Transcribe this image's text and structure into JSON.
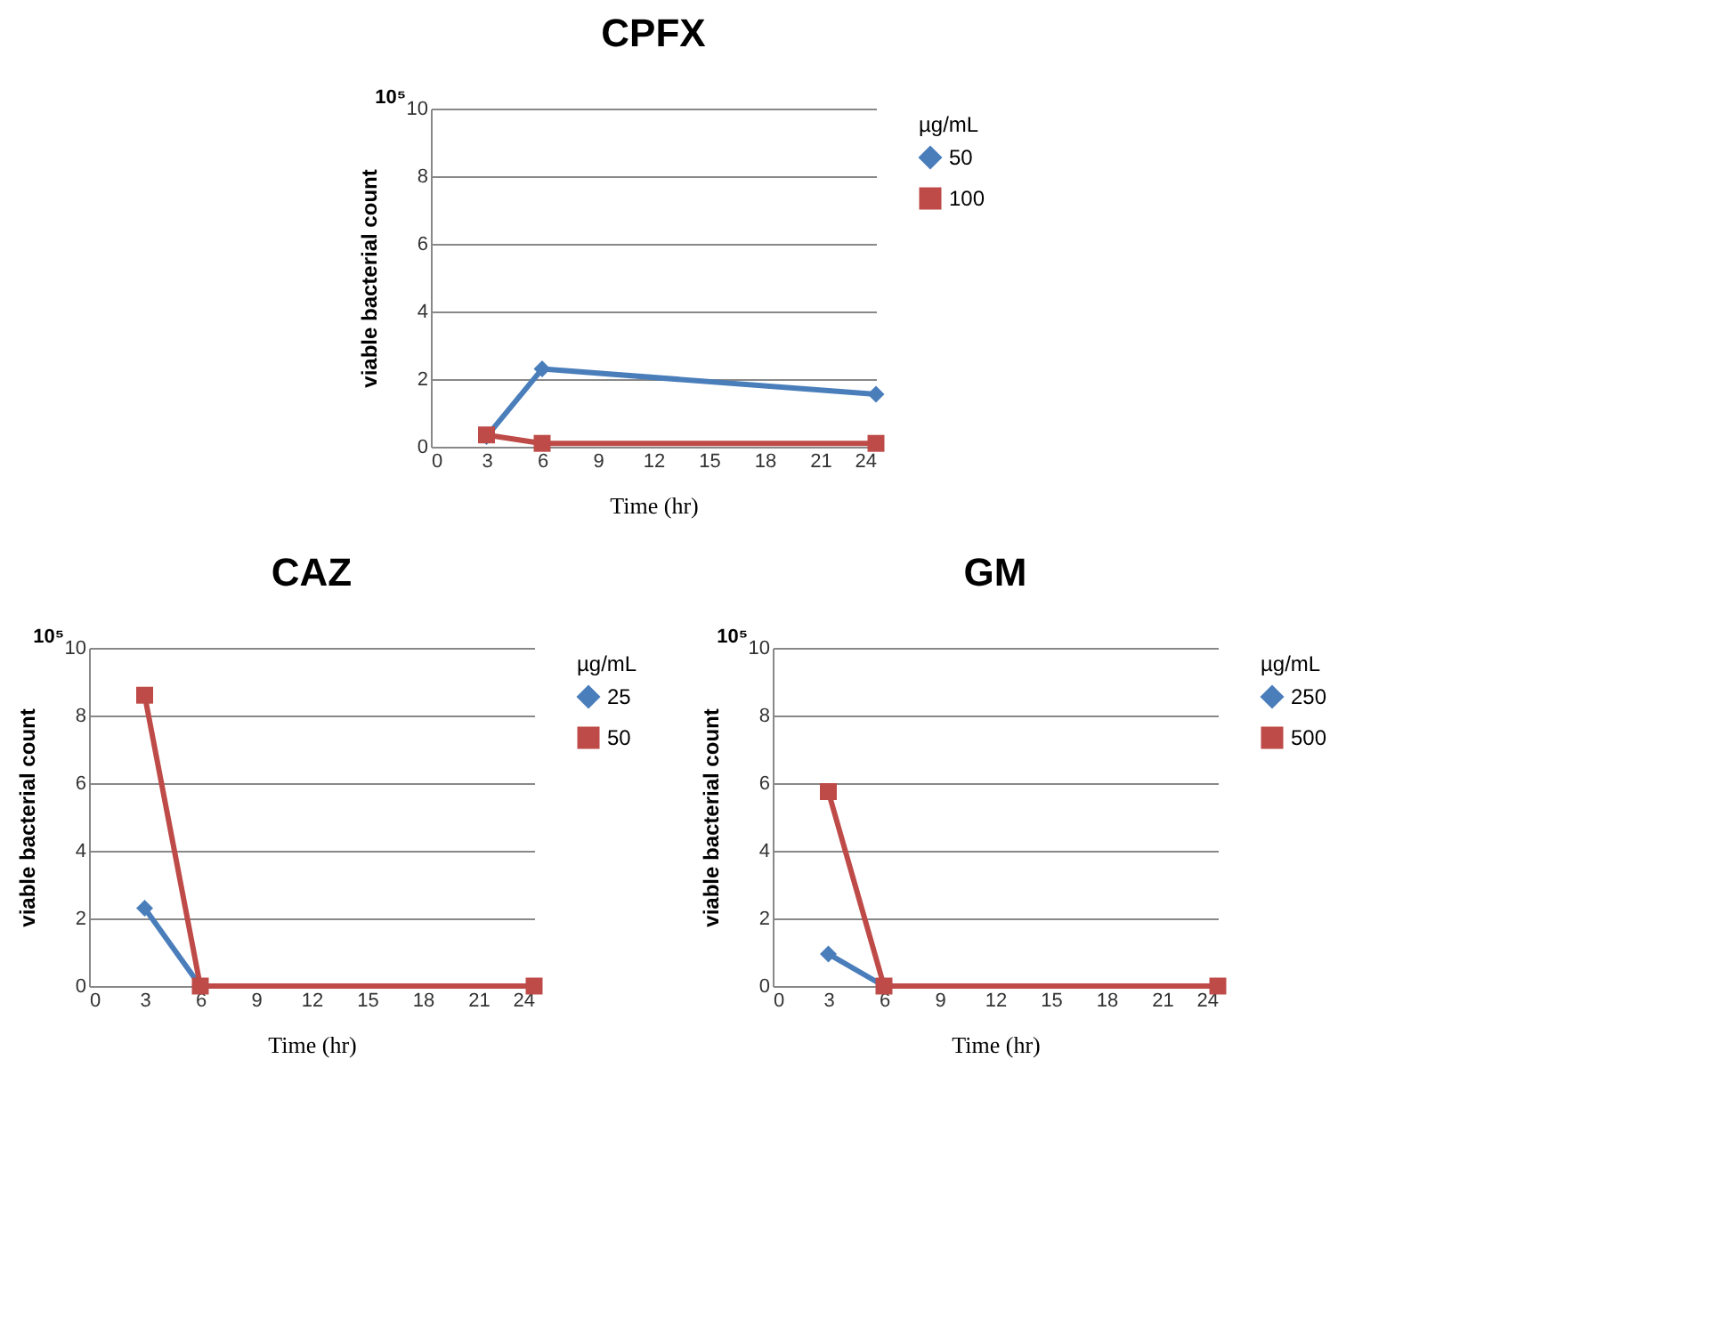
{
  "chart_data": [
    {
      "type": "line",
      "title": "CPFX",
      "xlabel": "Time (hr)",
      "ylabel": "viable bacterial count",
      "legend_title": "µg/mL",
      "annotations": [
        "10⁵"
      ],
      "xlim": [
        0,
        24
      ],
      "xticks": [
        0,
        3,
        6,
        9,
        12,
        15,
        18,
        21,
        24
      ],
      "ylim": [
        0,
        10
      ],
      "yticks": [
        0,
        2,
        4,
        6,
        8,
        10
      ],
      "grid": "y",
      "legend": "right",
      "line_style": "solid",
      "series": [
        {
          "name": "50",
          "color": "#4a7ebb",
          "marker": "diamond",
          "x": [
            3,
            6,
            24
          ],
          "values": [
            0.3,
            2.3,
            1.55
          ]
        },
        {
          "name": "100",
          "color": "#be4b48",
          "marker": "square",
          "x": [
            3,
            6,
            24
          ],
          "values": [
            0.35,
            0.1,
            0.1
          ]
        }
      ]
    },
    {
      "type": "line",
      "title": "CAZ",
      "xlabel": "Time (hr)",
      "ylabel": "viable bacterial count",
      "legend_title": "µg/mL",
      "annotations": [
        "10⁵"
      ],
      "xlim": [
        0,
        24
      ],
      "xticks": [
        0,
        3,
        6,
        9,
        12,
        15,
        18,
        21,
        24
      ],
      "ylim": [
        0,
        10
      ],
      "yticks": [
        0,
        2,
        4,
        6,
        8,
        10
      ],
      "grid": "y",
      "legend": "right",
      "line_style": "solid",
      "series": [
        {
          "name": "25",
          "color": "#4a7ebb",
          "marker": "diamond",
          "x": [
            3,
            6
          ],
          "values": [
            2.3,
            0
          ]
        },
        {
          "name": "50",
          "color": "#be4b48",
          "marker": "square",
          "x": [
            3,
            6,
            24
          ],
          "values": [
            8.6,
            0,
            0
          ]
        }
      ]
    },
    {
      "type": "line",
      "title": "GM",
      "xlabel": "Time (hr)",
      "ylabel": "viable bacterial count",
      "legend_title": "µg/mL",
      "annotations": [
        "10⁵"
      ],
      "xlim": [
        0,
        24
      ],
      "xticks": [
        0,
        3,
        6,
        9,
        12,
        15,
        18,
        21,
        24
      ],
      "ylim": [
        0,
        10
      ],
      "yticks": [
        0,
        2,
        4,
        6,
        8,
        10
      ],
      "grid": "y",
      "legend": "right",
      "line_style": "solid",
      "series": [
        {
          "name": "250",
          "color": "#4a7ebb",
          "marker": "diamond",
          "x": [
            3,
            6
          ],
          "values": [
            0.95,
            0
          ]
        },
        {
          "name": "500",
          "color": "#be4b48",
          "marker": "square",
          "x": [
            3,
            6,
            24
          ],
          "values": [
            5.75,
            0,
            0
          ]
        }
      ]
    }
  ]
}
